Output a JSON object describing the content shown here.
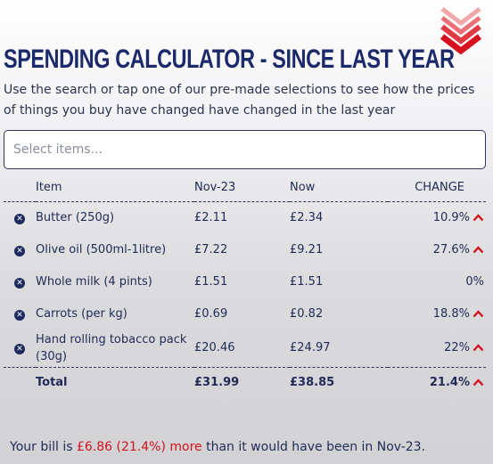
{
  "header": {
    "title": "SPENDING CALCULATOR - SINCE LAST YEAR",
    "subtitle": "Use the search or tap one of our pre-made selections to see how the prices of things you buy have changed have changed in the last year",
    "logo_icon": "chevron-stack-down-icon"
  },
  "search": {
    "placeholder": "Select items..."
  },
  "table": {
    "columns": [
      "Item",
      "Nov-23",
      "Now",
      "CHANGE"
    ],
    "rows": [
      {
        "item": "Butter (250g)",
        "prev": "£2.11",
        "now": "£2.34",
        "change": "10.9%",
        "up": true
      },
      {
        "item": "Olive oil (500ml-1litre)",
        "prev": "£7.22",
        "now": "£9.21",
        "change": "27.6%",
        "up": true
      },
      {
        "item": "Whole milk (4 pints)",
        "prev": "£1.51",
        "now": "£1.51",
        "change": "0%",
        "up": false
      },
      {
        "item": "Carrots (per kg)",
        "prev": "£0.69",
        "now": "£0.82",
        "change": "18.8%",
        "up": true
      },
      {
        "item": "Hand rolling tobacco pack (30g)",
        "prev": "£20.46",
        "now": "£24.97",
        "change": "22%",
        "up": true
      }
    ],
    "total": {
      "label": "Total",
      "prev": "£31.99",
      "now": "£38.85",
      "change": "21.4%"
    }
  },
  "summary": {
    "prefix": "Your bill is ",
    "amount": "£6.86 (21.4%) more",
    "suffix": " than it would have been in Nov-23."
  },
  "colors": {
    "navy": "#1c2a6b",
    "red": "#d4111d"
  },
  "icons": {
    "remove": "close-circle-icon",
    "increase": "chevron-up-icon"
  }
}
